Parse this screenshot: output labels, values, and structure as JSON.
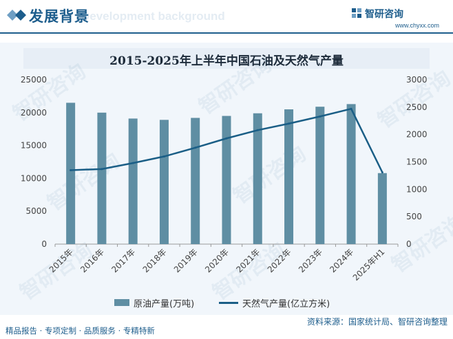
{
  "header": {
    "title": "发展背景",
    "subtitle": "Development background",
    "brand": "智研咨询",
    "url": "www.chyxx.com"
  },
  "chart_data": {
    "type": "bar",
    "title": "2015-2025年上半年中国石油及天然气产量",
    "categories": [
      "2015年",
      "2016年",
      "2017年",
      "2018年",
      "2019年",
      "2020年",
      "2021年",
      "2022年",
      "2023年",
      "2024年",
      "2025年H1"
    ],
    "series": [
      {
        "name": "原油产量(万吨)",
        "type": "bar",
        "axis": "left",
        "color": "#5f8ea3",
        "values": [
          21500,
          20000,
          19100,
          18900,
          19200,
          19500,
          19900,
          20500,
          20900,
          21300,
          10800
        ]
      },
      {
        "name": "天然气产量(亿立方米)",
        "type": "line",
        "axis": "right",
        "color": "#1a5e86",
        "values": [
          1350,
          1370,
          1480,
          1600,
          1760,
          1930,
          2080,
          2200,
          2330,
          2470,
          1310
        ]
      }
    ],
    "y_left": {
      "min": 0,
      "max": 25000,
      "ticks": [
        0,
        5000,
        10000,
        15000,
        20000,
        25000
      ]
    },
    "y_right": {
      "min": 0,
      "max": 3000,
      "ticks": [
        0,
        500,
        1000,
        1500,
        2000,
        2500,
        3000
      ]
    },
    "grid": false,
    "legend": "bottom"
  },
  "footer": {
    "left": "精品报告 · 专项定制 · 品质服务 · 专精特新",
    "right": "资料来源：国家统计局、智研咨询整理"
  },
  "watermark": "智研咨询"
}
